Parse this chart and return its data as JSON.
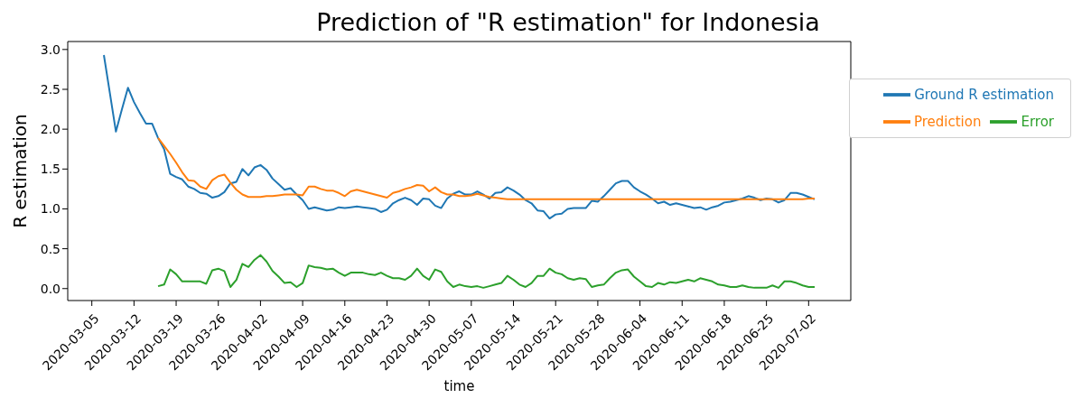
{
  "chart_data": {
    "type": "line",
    "title": "Prediction of \"R estimation\" for Indonesia",
    "xlabel": "time",
    "ylabel": "R estimation",
    "x": [
      "2020-03-07",
      "2020-03-08",
      "2020-03-09",
      "2020-03-10",
      "2020-03-11",
      "2020-03-12",
      "2020-03-13",
      "2020-03-14",
      "2020-03-15",
      "2020-03-16",
      "2020-03-17",
      "2020-03-18",
      "2020-03-19",
      "2020-03-20",
      "2020-03-21",
      "2020-03-22",
      "2020-03-23",
      "2020-03-24",
      "2020-03-25",
      "2020-03-26",
      "2020-03-27",
      "2020-03-28",
      "2020-03-29",
      "2020-03-30",
      "2020-03-31",
      "2020-04-01",
      "2020-04-02",
      "2020-04-03",
      "2020-04-04",
      "2020-04-05",
      "2020-04-06",
      "2020-04-07",
      "2020-04-08",
      "2020-04-09",
      "2020-04-10",
      "2020-04-11",
      "2020-04-12",
      "2020-04-13",
      "2020-04-14",
      "2020-04-15",
      "2020-04-16",
      "2020-04-17",
      "2020-04-18",
      "2020-04-19",
      "2020-04-20",
      "2020-04-21",
      "2020-04-22",
      "2020-04-23",
      "2020-04-24",
      "2020-04-25",
      "2020-04-26",
      "2020-04-27",
      "2020-04-28",
      "2020-04-29",
      "2020-04-30",
      "2020-05-01",
      "2020-05-02",
      "2020-05-03",
      "2020-05-04",
      "2020-05-05",
      "2020-05-06",
      "2020-05-07",
      "2020-05-08",
      "2020-05-09",
      "2020-05-10",
      "2020-05-11",
      "2020-05-12",
      "2020-05-13",
      "2020-05-14",
      "2020-05-15",
      "2020-05-16",
      "2020-05-17",
      "2020-05-18",
      "2020-05-19",
      "2020-05-20",
      "2020-05-21",
      "2020-05-22",
      "2020-05-23",
      "2020-05-24",
      "2020-05-25",
      "2020-05-26",
      "2020-05-27",
      "2020-05-28",
      "2020-05-29",
      "2020-05-30",
      "2020-05-31",
      "2020-06-01",
      "2020-06-02",
      "2020-06-03",
      "2020-06-04",
      "2020-06-05",
      "2020-06-06",
      "2020-06-07",
      "2020-06-08",
      "2020-06-09",
      "2020-06-10",
      "2020-06-11",
      "2020-06-12",
      "2020-06-13",
      "2020-06-14",
      "2020-06-15",
      "2020-06-16",
      "2020-06-17",
      "2020-06-18",
      "2020-06-19",
      "2020-06-20",
      "2020-06-21",
      "2020-06-22",
      "2020-06-23",
      "2020-06-24",
      "2020-06-25",
      "2020-06-26",
      "2020-06-27",
      "2020-06-28",
      "2020-06-29",
      "2020-06-30",
      "2020-07-01",
      "2020-07-02",
      "2020-07-03"
    ],
    "series": [
      {
        "name": "Ground R estimation",
        "color": "#1f77b4",
        "values": [
          2.93,
          2.45,
          1.97,
          2.25,
          2.52,
          2.34,
          2.2,
          2.07,
          2.07,
          1.89,
          1.75,
          1.44,
          1.4,
          1.37,
          1.28,
          1.25,
          1.2,
          1.19,
          1.14,
          1.16,
          1.21,
          1.32,
          1.34,
          1.5,
          1.42,
          1.52,
          1.55,
          1.49,
          1.38,
          1.31,
          1.24,
          1.26,
          1.18,
          1.11,
          1.0,
          1.02,
          1.0,
          0.98,
          0.99,
          1.02,
          1.01,
          1.02,
          1.03,
          1.02,
          1.01,
          1.0,
          0.96,
          0.99,
          1.07,
          1.11,
          1.14,
          1.11,
          1.05,
          1.13,
          1.12,
          1.04,
          1.01,
          1.13,
          1.19,
          1.22,
          1.18,
          1.18,
          1.22,
          1.18,
          1.13,
          1.2,
          1.21,
          1.27,
          1.23,
          1.18,
          1.11,
          1.07,
          0.98,
          0.97,
          0.88,
          0.93,
          0.94,
          1.0,
          1.01,
          1.01,
          1.01,
          1.1,
          1.09,
          1.16,
          1.24,
          1.32,
          1.35,
          1.35,
          1.27,
          1.22,
          1.18,
          1.13,
          1.07,
          1.09,
          1.05,
          1.07,
          1.05,
          1.03,
          1.01,
          1.02,
          0.99,
          1.02,
          1.04,
          1.08,
          1.09,
          1.11,
          1.13,
          1.16,
          1.14,
          1.11,
          1.13,
          1.12,
          1.08,
          1.11,
          1.2,
          1.2,
          1.18,
          1.15,
          1.12
        ]
      },
      {
        "name": "Prediction",
        "color": "#ff7f0e",
        "values": [
          null,
          null,
          null,
          null,
          null,
          null,
          null,
          null,
          null,
          1.89,
          1.79,
          1.69,
          1.58,
          1.46,
          1.36,
          1.35,
          1.28,
          1.25,
          1.36,
          1.41,
          1.43,
          1.33,
          1.24,
          1.18,
          1.15,
          1.15,
          1.15,
          1.16,
          1.16,
          1.17,
          1.18,
          1.18,
          1.18,
          1.17,
          1.28,
          1.28,
          1.25,
          1.23,
          1.23,
          1.2,
          1.16,
          1.22,
          1.24,
          1.22,
          1.2,
          1.18,
          1.16,
          1.14,
          1.2,
          1.22,
          1.25,
          1.27,
          1.3,
          1.29,
          1.22,
          1.27,
          1.21,
          1.18,
          1.18,
          1.16,
          1.16,
          1.17,
          1.19,
          1.17,
          1.15,
          1.14,
          1.13,
          1.12,
          1.12,
          1.12,
          1.12,
          1.12,
          1.12,
          1.12,
          1.12,
          1.12,
          1.12,
          1.12,
          1.12,
          1.12,
          1.12,
          1.12,
          1.12,
          1.12,
          1.12,
          1.12,
          1.12,
          1.12,
          1.12,
          1.12,
          1.12,
          1.12,
          1.12,
          1.12,
          1.12,
          1.12,
          1.12,
          1.12,
          1.12,
          1.12,
          1.12,
          1.12,
          1.12,
          1.12,
          1.12,
          1.12,
          1.12,
          1.12,
          1.12,
          1.12,
          1.12,
          1.12,
          1.12,
          1.12,
          1.12,
          1.12,
          1.12,
          1.13,
          1.13
        ]
      },
      {
        "name": "Error",
        "color": "#2ca02c",
        "values": [
          null,
          null,
          null,
          null,
          null,
          null,
          null,
          null,
          null,
          0.03,
          0.05,
          0.24,
          0.18,
          0.09,
          0.09,
          0.09,
          0.09,
          0.06,
          0.23,
          0.25,
          0.22,
          0.02,
          0.11,
          0.31,
          0.27,
          0.36,
          0.42,
          0.34,
          0.22,
          0.15,
          0.07,
          0.08,
          0.02,
          0.07,
          0.29,
          0.27,
          0.26,
          0.24,
          0.25,
          0.2,
          0.16,
          0.2,
          0.2,
          0.2,
          0.18,
          0.17,
          0.2,
          0.16,
          0.13,
          0.13,
          0.11,
          0.16,
          0.25,
          0.16,
          0.11,
          0.24,
          0.21,
          0.09,
          0.02,
          0.05,
          0.03,
          0.02,
          0.03,
          0.01,
          0.03,
          0.05,
          0.07,
          0.16,
          0.11,
          0.05,
          0.02,
          0.07,
          0.16,
          0.16,
          0.25,
          0.2,
          0.18,
          0.13,
          0.11,
          0.13,
          0.12,
          0.02,
          0.04,
          0.05,
          0.13,
          0.2,
          0.23,
          0.24,
          0.15,
          0.09,
          0.03,
          0.02,
          0.07,
          0.05,
          0.08,
          0.07,
          0.09,
          0.11,
          0.09,
          0.13,
          0.11,
          0.09,
          0.05,
          0.04,
          0.02,
          0.02,
          0.04,
          0.02,
          0.01,
          0.01,
          0.01,
          0.04,
          0.01,
          0.09,
          0.09,
          0.07,
          0.04,
          0.02,
          0.02
        ]
      }
    ],
    "xlim": [
      "2020-03-01",
      "2020-07-09"
    ],
    "xticks": [
      "2020-03-05",
      "2020-03-12",
      "2020-03-19",
      "2020-03-26",
      "2020-04-02",
      "2020-04-09",
      "2020-04-16",
      "2020-04-23",
      "2020-04-30",
      "2020-05-07",
      "2020-05-14",
      "2020-05-21",
      "2020-05-28",
      "2020-06-04",
      "2020-06-11",
      "2020-06-18",
      "2020-06-25",
      "2020-07-02"
    ],
    "ylim": [
      -0.15,
      3.1
    ],
    "yticks": [
      {
        "value": 0,
        "label": "0.0"
      },
      {
        "value": 0.5,
        "label": "0.5"
      },
      {
        "value": 1,
        "label": "1.0"
      },
      {
        "value": 1.5,
        "label": "1.5"
      },
      {
        "value": 2,
        "label": "2.0"
      },
      {
        "value": 2.5,
        "label": "2.5"
      },
      {
        "value": 3,
        "label": "3.0"
      }
    ],
    "legend": "top right",
    "grid": false,
    "marker": "none",
    "line_style": "solid"
  }
}
